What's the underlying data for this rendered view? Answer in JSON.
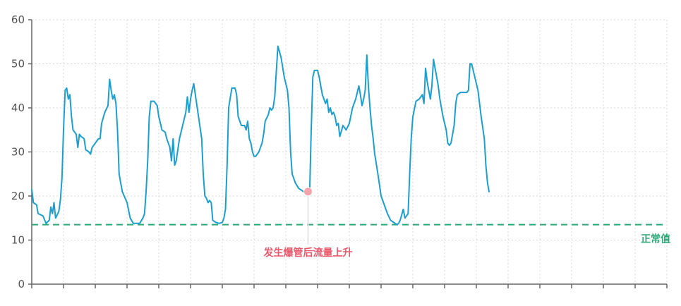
{
  "chart_data": {
    "type": "line",
    "title": "",
    "xlabel": "",
    "ylabel": "",
    "ylim": [
      0,
      60
    ],
    "y_ticks": [
      "0",
      "10",
      "20",
      "30",
      "40",
      "50",
      "60"
    ],
    "x_tick_count": 21,
    "grid": true,
    "series": [
      {
        "color": "#1a9fd0",
        "values": [
          [
            0,
            21.5
          ],
          [
            0.05,
            18.5
          ],
          [
            0.15,
            18
          ],
          [
            0.2,
            16
          ],
          [
            0.35,
            15.5
          ],
          [
            0.45,
            13.8
          ],
          [
            0.55,
            14.5
          ],
          [
            0.6,
            17.5
          ],
          [
            0.65,
            16
          ],
          [
            0.7,
            18.5
          ],
          [
            0.75,
            15
          ],
          [
            0.85,
            16.5
          ],
          [
            0.9,
            19
          ],
          [
            0.95,
            24
          ],
          [
            1.0,
            35
          ],
          [
            1.05,
            44
          ],
          [
            1.1,
            44.5
          ],
          [
            1.15,
            42
          ],
          [
            1.2,
            43
          ],
          [
            1.25,
            38
          ],
          [
            1.3,
            35
          ],
          [
            1.4,
            34
          ],
          [
            1.45,
            31
          ],
          [
            1.5,
            34
          ],
          [
            1.55,
            33.5
          ],
          [
            1.65,
            33
          ],
          [
            1.7,
            30.5
          ],
          [
            1.8,
            30
          ],
          [
            1.85,
            29.5
          ],
          [
            1.9,
            31
          ],
          [
            2.0,
            32
          ],
          [
            2.1,
            33
          ],
          [
            2.15,
            33
          ],
          [
            2.2,
            36.5
          ],
          [
            2.3,
            39
          ],
          [
            2.4,
            40.5
          ],
          [
            2.45,
            46.5
          ],
          [
            2.5,
            44
          ],
          [
            2.55,
            42
          ],
          [
            2.6,
            43
          ],
          [
            2.65,
            41
          ],
          [
            2.7,
            35
          ],
          [
            2.75,
            25
          ],
          [
            2.85,
            21
          ],
          [
            3.0,
            18.5
          ],
          [
            3.1,
            15
          ],
          [
            3.2,
            13.8
          ],
          [
            3.4,
            13.8
          ],
          [
            3.5,
            15
          ],
          [
            3.55,
            16
          ],
          [
            3.6,
            21
          ],
          [
            3.65,
            28
          ],
          [
            3.7,
            38
          ],
          [
            3.75,
            41.5
          ],
          [
            3.85,
            41.5
          ],
          [
            3.95,
            40.5
          ],
          [
            4.0,
            38
          ],
          [
            4.05,
            36.5
          ],
          [
            4.1,
            35
          ],
          [
            4.2,
            34.5
          ],
          [
            4.25,
            33
          ],
          [
            4.35,
            31
          ],
          [
            4.4,
            28
          ],
          [
            4.45,
            33
          ],
          [
            4.5,
            27
          ],
          [
            4.55,
            28
          ],
          [
            4.65,
            33
          ],
          [
            4.75,
            36
          ],
          [
            4.85,
            39
          ],
          [
            4.9,
            42.5
          ],
          [
            4.95,
            39
          ],
          [
            5.0,
            42
          ],
          [
            5.05,
            44
          ],
          [
            5.1,
            45.5
          ],
          [
            5.15,
            43
          ],
          [
            5.25,
            38
          ],
          [
            5.35,
            33
          ],
          [
            5.4,
            25
          ],
          [
            5.45,
            20
          ],
          [
            5.5,
            19.5
          ],
          [
            5.55,
            18.5
          ],
          [
            5.6,
            19
          ],
          [
            5.65,
            18.5
          ],
          [
            5.7,
            14.5
          ],
          [
            5.8,
            14
          ],
          [
            5.9,
            13.8
          ],
          [
            6.0,
            14
          ],
          [
            6.05,
            15
          ],
          [
            6.1,
            17
          ],
          [
            6.15,
            27
          ],
          [
            6.2,
            40
          ],
          [
            6.3,
            44.5
          ],
          [
            6.4,
            44.5
          ],
          [
            6.45,
            43
          ],
          [
            6.5,
            38
          ],
          [
            6.55,
            37
          ],
          [
            6.6,
            36
          ],
          [
            6.7,
            36
          ],
          [
            6.75,
            35
          ],
          [
            6.8,
            37
          ],
          [
            6.85,
            33
          ],
          [
            6.9,
            32
          ],
          [
            6.95,
            30
          ],
          [
            7.0,
            29
          ],
          [
            7.05,
            29
          ],
          [
            7.1,
            29.5
          ],
          [
            7.15,
            30
          ],
          [
            7.2,
            31
          ],
          [
            7.25,
            32
          ],
          [
            7.3,
            34
          ],
          [
            7.35,
            37
          ],
          [
            7.45,
            38.5
          ],
          [
            7.5,
            40
          ],
          [
            7.55,
            39.5
          ],
          [
            7.6,
            40
          ],
          [
            7.65,
            42.5
          ],
          [
            7.75,
            54
          ],
          [
            7.85,
            51.5
          ],
          [
            7.95,
            47
          ],
          [
            8.05,
            44
          ],
          [
            8.1,
            40
          ],
          [
            8.15,
            30
          ],
          [
            8.2,
            25
          ],
          [
            8.3,
            23
          ],
          [
            8.4,
            21.8
          ],
          [
            8.45,
            21.5
          ],
          [
            8.5,
            21.3
          ],
          [
            8.55,
            21
          ],
          [
            8.6,
            21
          ],
          [
            8.7,
            21.2
          ],
          [
            8.75,
            21
          ],
          [
            8.8,
            35
          ],
          [
            8.85,
            47
          ],
          [
            8.9,
            48.5
          ],
          [
            9.0,
            48.5
          ],
          [
            9.05,
            47
          ],
          [
            9.1,
            45
          ],
          [
            9.15,
            43
          ],
          [
            9.25,
            41
          ],
          [
            9.3,
            42
          ],
          [
            9.35,
            39
          ],
          [
            9.4,
            40
          ],
          [
            9.45,
            38.5
          ],
          [
            9.5,
            39
          ],
          [
            9.55,
            38
          ],
          [
            9.6,
            36
          ],
          [
            9.65,
            36.5
          ],
          [
            9.7,
            33.5
          ],
          [
            9.8,
            36
          ],
          [
            9.9,
            35
          ],
          [
            10.0,
            36.5
          ],
          [
            10.1,
            40
          ],
          [
            10.2,
            42
          ],
          [
            10.3,
            45
          ],
          [
            10.35,
            43
          ],
          [
            10.4,
            40.5
          ],
          [
            10.45,
            42
          ],
          [
            10.5,
            44
          ],
          [
            10.55,
            52
          ],
          [
            10.6,
            45
          ],
          [
            10.65,
            40
          ],
          [
            10.7,
            36
          ],
          [
            10.75,
            33
          ],
          [
            10.8,
            29.5
          ],
          [
            10.9,
            25
          ],
          [
            11.0,
            20
          ],
          [
            11.1,
            18
          ],
          [
            11.2,
            16
          ],
          [
            11.3,
            14.5
          ],
          [
            11.4,
            14
          ],
          [
            11.5,
            13.5
          ],
          [
            11.55,
            13.8
          ],
          [
            11.6,
            14.5
          ],
          [
            11.7,
            17
          ],
          [
            11.75,
            15
          ],
          [
            11.85,
            16
          ],
          [
            11.9,
            25
          ],
          [
            11.95,
            33
          ],
          [
            12.0,
            38
          ],
          [
            12.1,
            41.5
          ],
          [
            12.2,
            42
          ],
          [
            12.3,
            43
          ],
          [
            12.35,
            41
          ],
          [
            12.4,
            49
          ],
          [
            12.45,
            46
          ],
          [
            12.5,
            44
          ],
          [
            12.55,
            42
          ],
          [
            12.6,
            45
          ],
          [
            12.65,
            51
          ],
          [
            12.7,
            49
          ],
          [
            12.75,
            47
          ],
          [
            12.8,
            45
          ],
          [
            12.85,
            42
          ],
          [
            12.9,
            40
          ],
          [
            12.95,
            38
          ],
          [
            13.0,
            36.5
          ],
          [
            13.05,
            35
          ],
          [
            13.1,
            32
          ],
          [
            13.15,
            31.5
          ],
          [
            13.2,
            32
          ],
          [
            13.25,
            34
          ],
          [
            13.3,
            36
          ],
          [
            13.35,
            41
          ],
          [
            13.4,
            43
          ],
          [
            13.5,
            43.5
          ],
          [
            13.6,
            43.5
          ],
          [
            13.7,
            43.5
          ],
          [
            13.75,
            44
          ],
          [
            13.8,
            50
          ],
          [
            13.85,
            50
          ],
          [
            13.95,
            47
          ],
          [
            14.05,
            44
          ],
          [
            14.15,
            38
          ],
          [
            14.25,
            33
          ],
          [
            14.3,
            27
          ],
          [
            14.35,
            23
          ],
          [
            14.4,
            21
          ]
        ]
      }
    ],
    "x_range": [
      0,
      20
    ],
    "reference_line": {
      "y": 13.5,
      "label": "正常值",
      "color": "#2aa876"
    },
    "annotation": {
      "label": "发生爆管后流量上升",
      "x": 8.7,
      "y": 21,
      "color": "#e9586a",
      "marker_color": "#f4a3ab"
    }
  }
}
